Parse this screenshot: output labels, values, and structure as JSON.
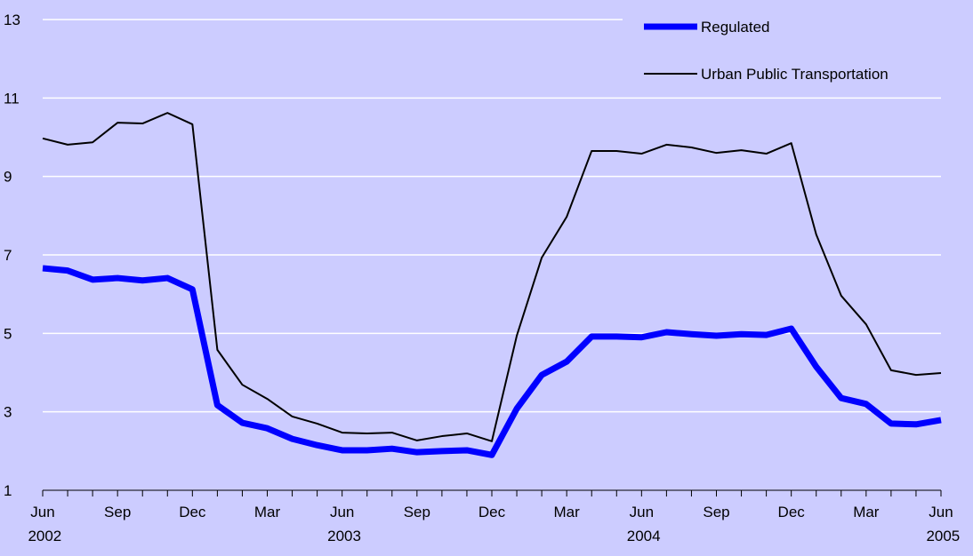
{
  "chart_data": {
    "type": "line",
    "categories": [
      "Jun 2002",
      null,
      null,
      "Sep",
      null,
      null,
      "Dec",
      null,
      null,
      "Mar",
      null,
      null,
      "Jun 2003",
      null,
      null,
      "Sep",
      null,
      null,
      "Dec",
      null,
      null,
      "Mar",
      null,
      null,
      "Jun 2004",
      null,
      null,
      "Sep",
      null,
      null,
      "Dec",
      null,
      null,
      "Mar",
      null,
      null,
      "Jun 2005"
    ],
    "series": [
      {
        "name": "Regulated",
        "color": "#0000ff",
        "values": [
          6.66,
          6.6,
          6.37,
          6.41,
          6.35,
          6.41,
          6.12,
          3.17,
          2.72,
          2.58,
          2.31,
          2.15,
          2.02,
          2.02,
          2.06,
          1.97,
          2.0,
          2.02,
          1.9,
          3.08,
          3.94,
          4.28,
          4.92,
          4.92,
          4.9,
          5.03,
          4.98,
          4.94,
          4.98,
          4.96,
          5.12,
          4.15,
          3.35,
          3.2,
          2.7,
          2.68,
          2.79
        ]
      },
      {
        "name": "Urban Public Transportation",
        "color": "#000000",
        "values": [
          9.97,
          9.81,
          9.87,
          10.37,
          10.35,
          10.62,
          10.33,
          4.58,
          3.69,
          3.33,
          2.88,
          2.7,
          2.47,
          2.45,
          2.47,
          2.27,
          2.38,
          2.45,
          2.25,
          4.94,
          6.93,
          7.97,
          9.65,
          9.65,
          9.58,
          9.81,
          9.74,
          9.6,
          9.67,
          9.58,
          9.85,
          7.52,
          5.96,
          5.23,
          4.06,
          3.94,
          3.99
        ]
      }
    ],
    "ylim": [
      1,
      13
    ],
    "yticks": [
      1,
      3,
      5,
      7,
      9,
      11,
      13
    ],
    "grid": true
  }
}
